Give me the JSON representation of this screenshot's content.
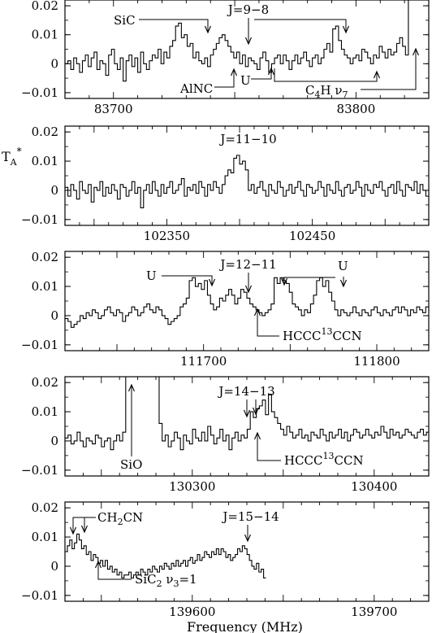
{
  "figure": {
    "xlabel": "Frequency (MHz)",
    "ylabel_main": "T",
    "ylabel_sub": "A",
    "ylabel_sup": "*"
  },
  "chart_data": [
    {
      "type": "line",
      "panel": 1,
      "xlim": [
        83680,
        83830
      ],
      "ylim": [
        -0.012,
        0.022
      ],
      "yticks": [
        0.02,
        0.01,
        0,
        -0.01
      ],
      "yticklabels": [
        "0.02",
        "0.01",
        "0",
        "−0.01"
      ],
      "xticks": [
        83700,
        83800
      ],
      "xticklabels": [
        "83700",
        "83800"
      ],
      "x_start": 83680,
      "x_step": 1.2,
      "values": [
        0.0,
        0.001,
        -0.002,
        0.002,
        0.0,
        -0.003,
        0.001,
        0.003,
        -0.001,
        0.002,
        0.004,
        -0.002,
        0.001,
        0.0,
        -0.004,
        0.003,
        0.005,
        0.0,
        -0.002,
        0.002,
        -0.006,
        0.001,
        0.003,
        -0.001,
        0.002,
        -0.003,
        0.004,
        0.0,
        -0.002,
        0.001,
        0.003,
        0.002,
        0.005,
        0.0,
        0.004,
        0.002,
        0.006,
        0.008,
        0.013,
        0.014,
        0.009,
        0.01,
        0.006,
        0.007,
        0.002,
        0.004,
        0.001,
        0.0,
        0.002,
        -0.001,
        0.003,
        0.005,
        0.007,
        0.009,
        0.01,
        0.008,
        0.006,
        0.004,
        0.002,
        0.004,
        0.0,
        0.003,
        -0.001,
        0.002,
        0.001,
        0.0,
        -0.002,
        0.002,
        0.004,
        0.001,
        -0.003,
        0.0,
        0.002,
        0.003,
        0.0,
        0.003,
        0.001,
        -0.002,
        0.001,
        0.003,
        0.0,
        0.002,
        0.004,
        0.001,
        -0.001,
        0.002,
        0.003,
        0.0,
        0.002,
        0.005,
        0.007,
        0.004,
        0.012,
        0.013,
        0.008,
        0.005,
        0.003,
        0.002,
        0.0,
        0.002,
        0.003,
        0.001,
        0.005,
        0.004,
        0.002,
        0.0,
        0.003,
        0.002,
        0.006,
        0.004,
        0.002,
        0.005,
        0.003,
        0.004,
        0.007,
        0.009,
        0.006,
        0.003,
        0.022,
        0.022,
        0.022,
        0.022,
        0.022,
        0.022
      ],
      "annotations": [
        {
          "text": "SiC",
          "x": 83772
        },
        {
          "text": "J=9−8",
          "x": 83784
        },
        {
          "text": "AlNC",
          "x": 83767
        },
        {
          "text": "U",
          "x": 83796
        },
        {
          "text": "C",
          "sub": "4",
          "after": "H  ν",
          "sub2": "7",
          "x": 83816
        }
      ]
    },
    {
      "type": "line",
      "panel": 2,
      "xlim": [
        102280,
        102530
      ],
      "ylim": [
        -0.012,
        0.022
      ],
      "yticks": [
        0.02,
        0.01,
        0,
        -0.01
      ],
      "yticklabels": [
        "0.02",
        "0.01",
        "0",
        "−0.01"
      ],
      "xticks": [
        102350,
        102450
      ],
      "xticklabels": [
        "102350",
        "102450"
      ],
      "x_start": 102280,
      "x_step": 2.0,
      "values": [
        0.001,
        -0.002,
        0.002,
        0.0,
        -0.003,
        0.003,
        0.0,
        -0.001,
        0.002,
        -0.004,
        0.001,
        0.0,
        0.003,
        -0.002,
        0.001,
        -0.001,
        0.002,
        0.0,
        -0.003,
        0.002,
        0.001,
        -0.002,
        0.0,
        0.003,
        -0.001,
        0.001,
        -0.006,
        0.0,
        0.002,
        -0.001,
        0.003,
        0.0,
        -0.002,
        0.002,
        -0.001,
        0.001,
        0.003,
        -0.001,
        0.0,
        0.002,
        0.004,
        -0.002,
        0.001,
        0.0,
        0.002,
        -0.001,
        0.003,
        0.001,
        -0.002,
        0.002,
        0.0,
        0.003,
        0.001,
        -0.001,
        0.002,
        0.005,
        0.007,
        0.006,
        0.011,
        0.012,
        0.009,
        0.01,
        0.007,
        0.0,
        0.002,
        -0.001,
        0.001,
        0.003,
        0.0,
        -0.002,
        0.002,
        0.0,
        -0.001,
        0.003,
        0.001,
        -0.002,
        0.0,
        0.002,
        -0.001,
        0.001,
        0.003,
        0.0,
        -0.002,
        0.002,
        0.001,
        -0.001,
        0.0,
        0.003,
        0.001,
        -0.002,
        0.002,
        0.0,
        -0.001,
        0.003,
        0.0,
        -0.002,
        0.001,
        0.002,
        -0.001,
        0.0,
        0.003,
        0.001,
        -0.002,
        0.002,
        0.0,
        -0.001,
        0.002,
        0.001,
        0.003,
        0.0,
        -0.002,
        0.001,
        0.002,
        -0.001,
        0.003,
        0.0,
        -0.002,
        0.002,
        0.001,
        0.0,
        0.003,
        -0.001,
        0.002,
        0.0,
        -0.002
      ],
      "annotations": [
        {
          "text": "J=11−10",
          "x": 102421
        }
      ]
    },
    {
      "type": "line",
      "panel": 3,
      "xlim": [
        111620,
        111830
      ],
      "ylim": [
        -0.012,
        0.022
      ],
      "yticks": [
        0.02,
        0.01,
        0,
        -0.01
      ],
      "yticklabels": [
        "0.02",
        "0.01",
        "0",
        "−0.01"
      ],
      "xticks": [
        111700,
        111800
      ],
      "xticklabels": [
        "111700",
        "111800"
      ],
      "x_start": 111620,
      "x_step": 1.75,
      "values": [
        -0.001,
        -0.002,
        -0.004,
        -0.003,
        -0.002,
        0.0,
        -0.001,
        0.001,
        0.0,
        0.002,
        0.001,
        -0.001,
        0.0,
        0.002,
        0.003,
        0.001,
        0.0,
        0.002,
        0.001,
        -0.002,
        0.0,
        0.001,
        0.003,
        0.002,
        0.0,
        0.001,
        0.003,
        0.004,
        0.002,
        0.001,
        0.003,
        0.002,
        0.0,
        -0.001,
        -0.003,
        -0.002,
        -0.001,
        0.0,
        0.003,
        0.004,
        0.006,
        0.012,
        0.013,
        0.01,
        0.011,
        0.009,
        0.012,
        0.007,
        0.004,
        0.002,
        0.003,
        0.006,
        0.005,
        0.007,
        0.009,
        0.007,
        0.004,
        0.006,
        0.009,
        0.008,
        0.006,
        0.004,
        0.003,
        0.002,
        0.001,
        0.0,
        0.001,
        0.002,
        0.004,
        0.013,
        0.011,
        0.013,
        0.012,
        0.011,
        0.008,
        0.004,
        0.003,
        0.002,
        0.0,
        0.002,
        0.001,
        0.004,
        0.007,
        0.012,
        0.013,
        0.01,
        0.012,
        0.008,
        0.005,
        0.002,
        0.0,
        0.002,
        0.001,
        0.0,
        0.001,
        0.003,
        0.001,
        0.0,
        0.002,
        0.001,
        0.0,
        0.002,
        0.003,
        0.001,
        0.0,
        0.002,
        0.001,
        0.0,
        0.002,
        0.003,
        0.001,
        0.003,
        0.002,
        0.0,
        0.002,
        0.001,
        0.003,
        0.002,
        0.001,
        0.003,
        0.002
      ],
      "annotations": [
        {
          "text": "U",
          "x": 111693
        },
        {
          "text": "J=12−11",
          "x": 111712
        },
        {
          "text": "U",
          "x": 111759
        },
        {
          "text": "HCCC",
          "sup": "13",
          "after": "CCN",
          "x": 111719
        }
      ]
    },
    {
      "type": "line",
      "panel": 4,
      "xlim": [
        130230,
        130430
      ],
      "ylim": [
        -0.012,
        0.022
      ],
      "yticks": [
        0.02,
        0.01,
        0,
        -0.01
      ],
      "yticklabels": [
        "0.02",
        "0.01",
        "0",
        "−0.01"
      ],
      "xticks": [
        130300,
        130400
      ],
      "xticklabels": [
        "130300",
        "130400"
      ],
      "x_start": 130230,
      "x_step": 1.67,
      "values": [
        0.001,
        0.002,
        -0.001,
        0.0,
        0.003,
        0.0,
        -0.002,
        0.001,
        0.0,
        -0.001,
        0.002,
        0.001,
        -0.002,
        0.0,
        0.001,
        -0.003,
        0.0,
        0.002,
        0.0,
        0.003,
        0.022,
        0.022,
        0.022,
        0.022,
        0.022,
        0.022,
        0.022,
        0.022,
        0.022,
        0.022,
        0.022,
        0.006,
        0.0,
        0.002,
        -0.002,
        0.0,
        0.003,
        0.001,
        -0.003,
        0.002,
        0.0,
        -0.001,
        0.004,
        0.001,
        0.0,
        0.003,
        0.0,
        0.005,
        0.002,
        -0.001,
        0.001,
        0.004,
        0.0,
        0.002,
        -0.003,
        0.001,
        0.003,
        0.0,
        0.002,
        0.001,
        0.004,
        0.01,
        0.008,
        0.011,
        0.012,
        0.014,
        0.009,
        0.016,
        0.01,
        0.008,
        0.006,
        0.004,
        0.002,
        0.005,
        0.003,
        0.001,
        0.002,
        0.004,
        0.001,
        0.002,
        0.0,
        0.003,
        0.002,
        0.001,
        0.004,
        0.002,
        0.0,
        0.003,
        0.001,
        0.002,
        0.004,
        0.001,
        0.003,
        0.0,
        0.002,
        0.004,
        0.003,
        0.001,
        0.002,
        0.004,
        0.002,
        0.001,
        0.003,
        0.002,
        0.005,
        0.003,
        0.001,
        0.004,
        0.002,
        0.003,
        0.001,
        0.002,
        0.004,
        0.003,
        0.002,
        0.001,
        0.003,
        0.004,
        0.002,
        0.003
      ],
      "annotations": [
        {
          "text": "J=14−13",
          "x": 130336
        },
        {
          "text": "SiO",
          "x": 130268
        },
        {
          "text": "HCCC",
          "sup": "13",
          "after": "CCN",
          "x": 130340
        }
      ]
    },
    {
      "type": "line",
      "panel": 5,
      "xlim": [
        139530,
        139730
      ],
      "ylim": [
        -0.012,
        0.022
      ],
      "yticks": [
        0.02,
        0.01,
        0,
        -0.01
      ],
      "yticklabels": [
        "0.02",
        "0.01",
        "0",
        "−0.01"
      ],
      "xticks": [
        139600,
        139700
      ],
      "xticklabels": [
        "139600",
        "139700"
      ],
      "x_start": 139530,
      "x_step": 1.3,
      "values": [
        0.005,
        0.007,
        0.009,
        0.006,
        0.008,
        0.011,
        0.009,
        0.006,
        0.007,
        0.004,
        0.005,
        0.002,
        0.004,
        0.003,
        0.001,
        0.002,
        0.0,
        0.002,
        -0.001,
        0.0,
        -0.002,
        -0.001,
        -0.003,
        -0.002,
        -0.004,
        -0.003,
        -0.003,
        -0.002,
        -0.004,
        -0.003,
        -0.002,
        -0.003,
        -0.001,
        -0.002,
        -0.003,
        -0.001,
        -0.002,
        0.0,
        -0.001,
        -0.002,
        0.0,
        -0.001,
        0.001,
        0.0,
        -0.001,
        0.001,
        0.0,
        0.002,
        0.0,
        0.001,
        0.002,
        0.0,
        0.002,
        0.003,
        0.001,
        0.002,
        0.004,
        0.002,
        0.003,
        0.005,
        0.004,
        0.003,
        0.005,
        0.004,
        0.006,
        0.004,
        0.006,
        0.005,
        0.003,
        0.004,
        0.002,
        0.003,
        0.004,
        0.006,
        0.005,
        0.007,
        0.006,
        0.004,
        0.002,
        0.0,
        -0.001,
        0.001,
        -0.002,
        -0.001,
        -0.004
      ],
      "annotations": [
        {
          "text": "CH",
          "sub": "2",
          "after": "CN",
          "x": 139537
        },
        {
          "text": "J=15−14",
          "x": 139640
        },
        {
          "text": "SiC",
          "sub": "2",
          "after": "  ν",
          "sub2": "3",
          "after2": "=1",
          "x": 139549
        }
      ]
    }
  ]
}
